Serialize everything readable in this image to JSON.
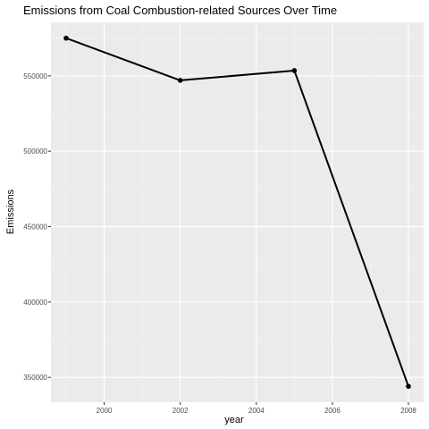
{
  "chart_data": {
    "type": "line",
    "title": "Emissions from Coal Combustion-related Sources Over Time",
    "xlabel": "year",
    "ylabel": "Emissions",
    "x": [
      1999,
      2002,
      2005,
      2008
    ],
    "series": [
      {
        "values": [
          575000,
          547000,
          553500,
          344000
        ]
      }
    ],
    "xlim": [
      1998.6,
      2008.4
    ],
    "ylim": [
      333500,
      585500
    ],
    "x_ticks": [
      2000,
      2002,
      2004,
      2006,
      2008
    ],
    "x_tick_labels": [
      "2000",
      "2002",
      "2004",
      "2006",
      "2008"
    ],
    "y_ticks": [
      350000,
      400000,
      450000,
      500000,
      550000
    ],
    "y_tick_labels": [
      "350000",
      "400000",
      "450000",
      "500000",
      "550000"
    ],
    "grid": true,
    "legend": "none",
    "colors": {
      "panel": "#EBEBEB",
      "grid_major": "#FFFFFF",
      "grid_minor": "#F5F5F5",
      "line": "#000000",
      "tick_text": "#4D4D4D"
    }
  }
}
